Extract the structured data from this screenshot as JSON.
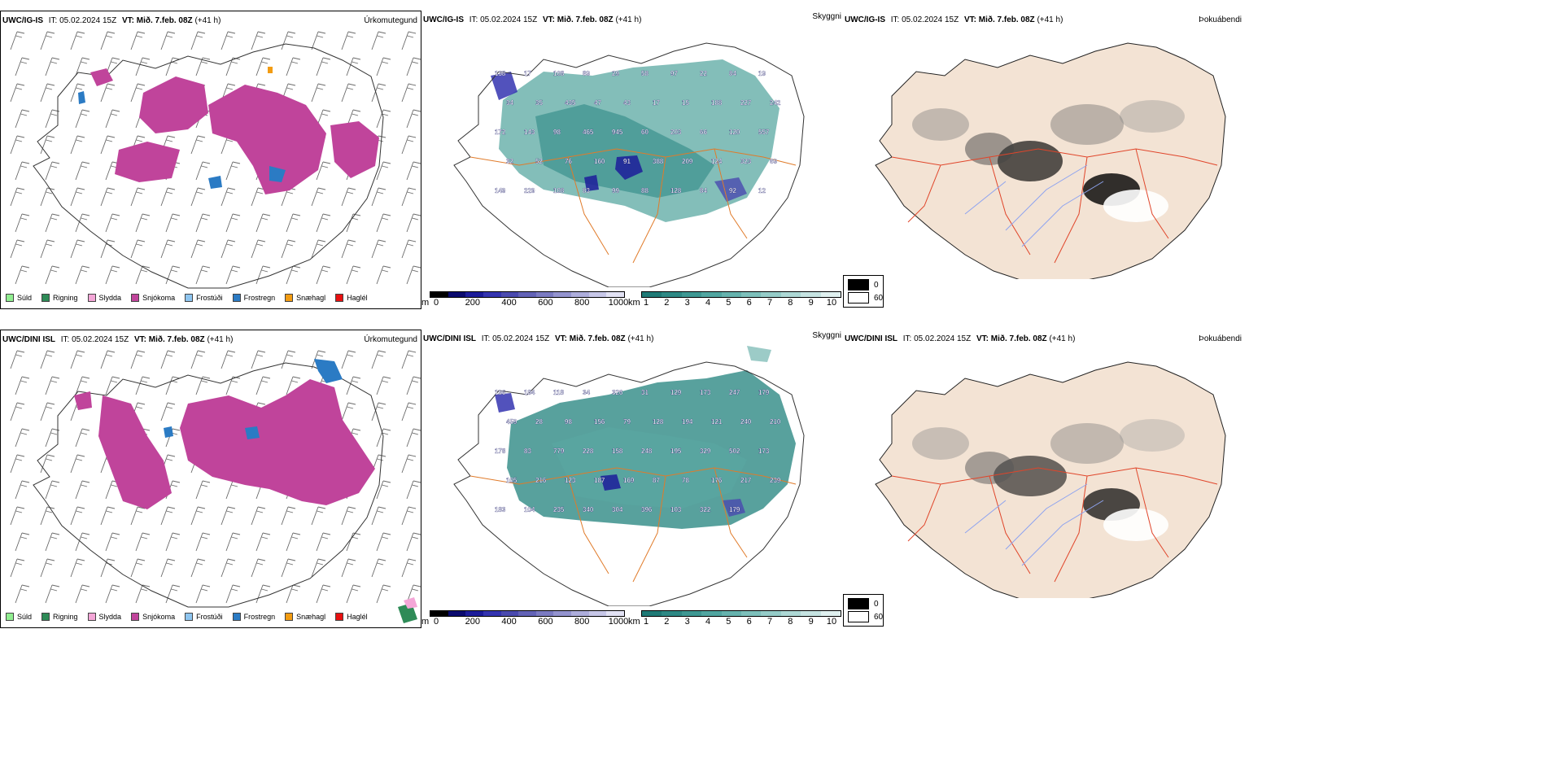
{
  "rows": [
    {
      "model": "UWC/IG-IS",
      "it_label": "IT:",
      "it_value": "05.02.2024 15Z",
      "vt_label": "VT:",
      "vt_value": "Mið. 7.feb. 08Z",
      "lead": "(+41 h)"
    },
    {
      "model": "UWC/DINI ISL",
      "it_label": "IT:",
      "it_value": "05.02.2024 15Z",
      "vt_label": "VT:",
      "vt_value": "Mið. 7.feb. 08Z",
      "lead": "(+41 h)"
    }
  ],
  "fields": {
    "precip_type": "Úrkomutegund",
    "visibility": "Skyggni",
    "fog_index": "Þokuábendi"
  },
  "precip_legend": [
    {
      "label": "Súld",
      "color": "#90ee90"
    },
    {
      "label": "Rigning",
      "color": "#2e8b57"
    },
    {
      "label": "Slydda",
      "color": "#f4a6d7"
    },
    {
      "label": "Snjókoma",
      "color": "#c0449b"
    },
    {
      "label": "Frostúði",
      "color": "#8ec5f0"
    },
    {
      "label": "Frostregn",
      "color": "#2b7bc4"
    },
    {
      "label": "Snæhagl",
      "color": "#f39c12"
    },
    {
      "label": "Haglél",
      "color": "#e81010"
    }
  ],
  "colorbars": {
    "m": {
      "unit": "m",
      "ticks": [
        "0",
        "200",
        "400",
        "600",
        "800",
        "1000"
      ],
      "colors": [
        "#000000",
        "#0a0a6e",
        "#1c1c9a",
        "#3434b0",
        "#4a4aaf",
        "#6363b7",
        "#7b7bc2",
        "#9494cf",
        "#aeaedc",
        "#c7c7e8",
        "#e2e2f4"
      ]
    },
    "km": {
      "unit": "km",
      "ticks": [
        "1",
        "2",
        "3",
        "4",
        "5",
        "6",
        "7",
        "8",
        "9",
        "10"
      ],
      "colors": [
        "#1f7a76",
        "#2e8985",
        "#3e9893",
        "#51a6a1",
        "#66b3ae",
        "#7dc0bb",
        "#95ccc8",
        "#add8d5",
        "#c6e4e2",
        "#e0f1f0"
      ]
    },
    "fog": {
      "items": [
        {
          "label": "0",
          "color": "#000000"
        },
        {
          "label": "60",
          "color": "#ffffff"
        }
      ]
    }
  },
  "visibility_labels": {
    "top": [
      "138",
      "17",
      "108",
      "89",
      "29",
      "58",
      "97",
      "22",
      "84",
      "19",
      "34",
      "35",
      "435",
      "47",
      "43",
      "17",
      "15",
      "188",
      "227",
      "242",
      "172",
      "143",
      "98",
      "465",
      "945",
      "60",
      "203",
      "66",
      "120",
      "557",
      "32",
      "52",
      "76",
      "160",
      "91",
      "388",
      "209",
      "124",
      "323",
      "69",
      "149",
      "229",
      "108",
      "83",
      "99",
      "88",
      "128",
      "84",
      "92",
      "12"
    ],
    "bottom": [
      "196",
      "184",
      "118",
      "34",
      "326",
      "31",
      "129",
      "173",
      "247",
      "179",
      "459",
      "28",
      "98",
      "156",
      "79",
      "128",
      "194",
      "121",
      "240",
      "210",
      "178",
      "83",
      "779",
      "228",
      "158",
      "248",
      "195",
      "329",
      "502",
      "173",
      "105",
      "216",
      "123",
      "187",
      "169",
      "87",
      "78",
      "176",
      "217",
      "239",
      "183",
      "104",
      "235",
      "340",
      "304",
      "396",
      "103",
      "322",
      "179"
    ]
  }
}
